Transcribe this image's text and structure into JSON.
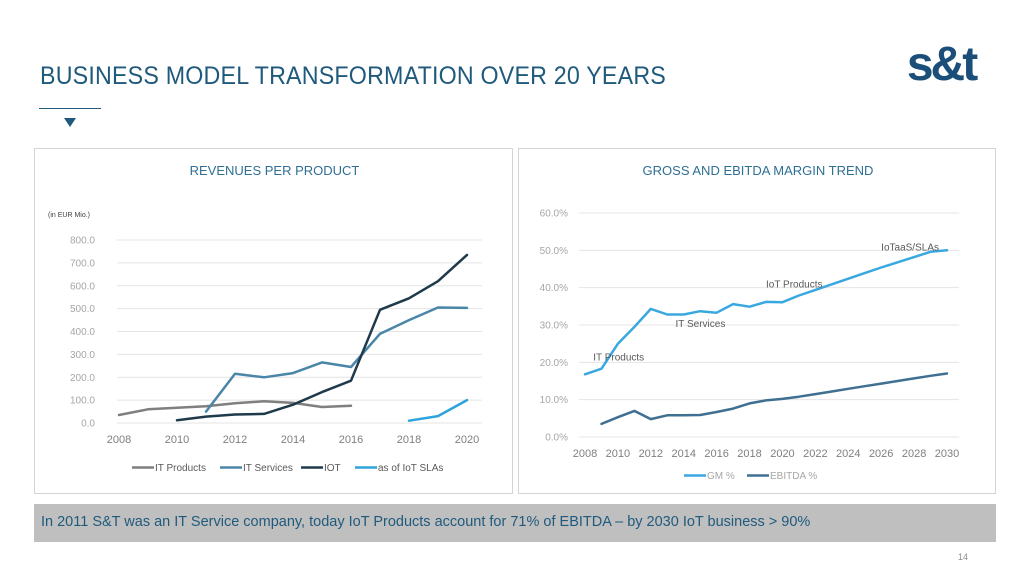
{
  "slide": {
    "title": "BUSINESS MODEL TRANSFORMATION OVER 20 YEARS",
    "logo_text": "s&t",
    "banner": "In 2011 S&T was an IT Service company, today IoT Products account for 71% of EBITDA – by 2030 IoT business > 90%",
    "page_number": "14",
    "colors": {
      "title": "#1f5a7d",
      "logo": "#1b4f7a",
      "banner_bg": "#bfbfbf"
    }
  },
  "chart_data": [
    {
      "type": "line",
      "title": "REVENUES PER PRODUCT",
      "unit_note": "(in EUR Mio.)",
      "xlabel": "",
      "ylabel": "",
      "x_ticks": [
        "2008",
        "2010",
        "2012",
        "2014",
        "2016",
        "2018",
        "2020"
      ],
      "xlim": [
        2008,
        2020
      ],
      "ylim": [
        0,
        800
      ],
      "y_ticks": [
        "0.0",
        "100.0",
        "200.0",
        "300.0",
        "400.0",
        "500.0",
        "600.0",
        "700.0",
        "800.0"
      ],
      "y_tick_values": [
        0,
        100,
        200,
        300,
        400,
        500,
        600,
        700,
        800
      ],
      "grid": true,
      "legend_position": "bottom",
      "series": [
        {
          "name": "IT Products",
          "color": "#7f7f7f",
          "x": [
            2008,
            2009,
            2010,
            2011,
            2012,
            2013,
            2014,
            2015,
            2016
          ],
          "values": [
            35,
            60,
            67,
            73,
            86,
            95,
            88,
            70,
            75
          ]
        },
        {
          "name": "IT Services",
          "color": "#4a86a8",
          "x": [
            2011,
            2012,
            2013,
            2014,
            2015,
            2016,
            2017,
            2018,
            2019,
            2020
          ],
          "values": [
            50,
            215,
            200,
            218,
            265,
            245,
            390,
            450,
            505,
            503
          ]
        },
        {
          "name": "IOT",
          "color": "#1f3a4a",
          "x": [
            2010,
            2011,
            2012,
            2013,
            2014,
            2015,
            2016,
            2017,
            2018,
            2019,
            2020
          ],
          "values": [
            12,
            28,
            37,
            40,
            80,
            135,
            185,
            495,
            545,
            620,
            735
          ]
        },
        {
          "name": "as of IoT SLAs",
          "color": "#2ea3dc",
          "x": [
            2018,
            2019,
            2020
          ],
          "values": [
            10,
            30,
            100
          ]
        }
      ]
    },
    {
      "type": "line",
      "title": "GROSS AND EBITDA MARGIN TREND",
      "xlabel": "",
      "ylabel": "",
      "x_ticks": [
        "2008",
        "2010",
        "2012",
        "2014",
        "2016",
        "2018",
        "2020",
        "2022",
        "2024",
        "2026",
        "2028",
        "2030"
      ],
      "xlim": [
        2008,
        2030
      ],
      "ylim": [
        0,
        60
      ],
      "y_ticks": [
        "0.0%",
        "10.0%",
        "20.0%",
        "30.0%",
        "40.0%",
        "50.0%",
        "60.0%"
      ],
      "y_tick_values": [
        0,
        10,
        20,
        30,
        40,
        50,
        60
      ],
      "grid": true,
      "legend_position": "bottom",
      "annotations": [
        {
          "text": "IT Products",
          "x": 2008.5,
          "y": 20.5
        },
        {
          "text": "IT Services",
          "x": 2013.5,
          "y": 29.5
        },
        {
          "text": "IoT Products",
          "x": 2019.0,
          "y": 40.0
        },
        {
          "text": "IoTaaS/SLAs",
          "x": 2026.0,
          "y": 50.0
        }
      ],
      "series": [
        {
          "name": "GM %",
          "color": "#3aa8e0",
          "x": [
            2008,
            2009,
            2010,
            2011,
            2012,
            2013,
            2014,
            2015,
            2016,
            2017,
            2018,
            2019,
            2020,
            2021,
            2022,
            2023,
            2024,
            2025,
            2026,
            2027,
            2028,
            2029,
            2030
          ],
          "values": [
            16.8,
            18.3,
            25.0,
            29.5,
            34.3,
            32.8,
            32.8,
            33.7,
            33.3,
            35.6,
            34.9,
            36.2,
            36.1,
            37.9,
            39.4,
            40.9,
            42.4,
            43.9,
            45.4,
            46.8,
            48.2,
            49.6,
            50.0
          ]
        },
        {
          "name": "EBITDA %",
          "color": "#3f6f91",
          "x": [
            2009,
            2010,
            2011,
            2012,
            2013,
            2014,
            2015,
            2016,
            2017,
            2018,
            2019,
            2020,
            2021,
            2022,
            2023,
            2024,
            2025,
            2026,
            2027,
            2028,
            2029,
            2030
          ],
          "values": [
            3.5,
            5.3,
            7.0,
            4.8,
            5.8,
            5.8,
            5.9,
            6.7,
            7.6,
            9.0,
            9.8,
            10.2,
            10.8,
            11.5,
            12.2,
            12.9,
            13.6,
            14.3,
            15.0,
            15.7,
            16.4,
            17.0
          ]
        }
      ]
    }
  ]
}
